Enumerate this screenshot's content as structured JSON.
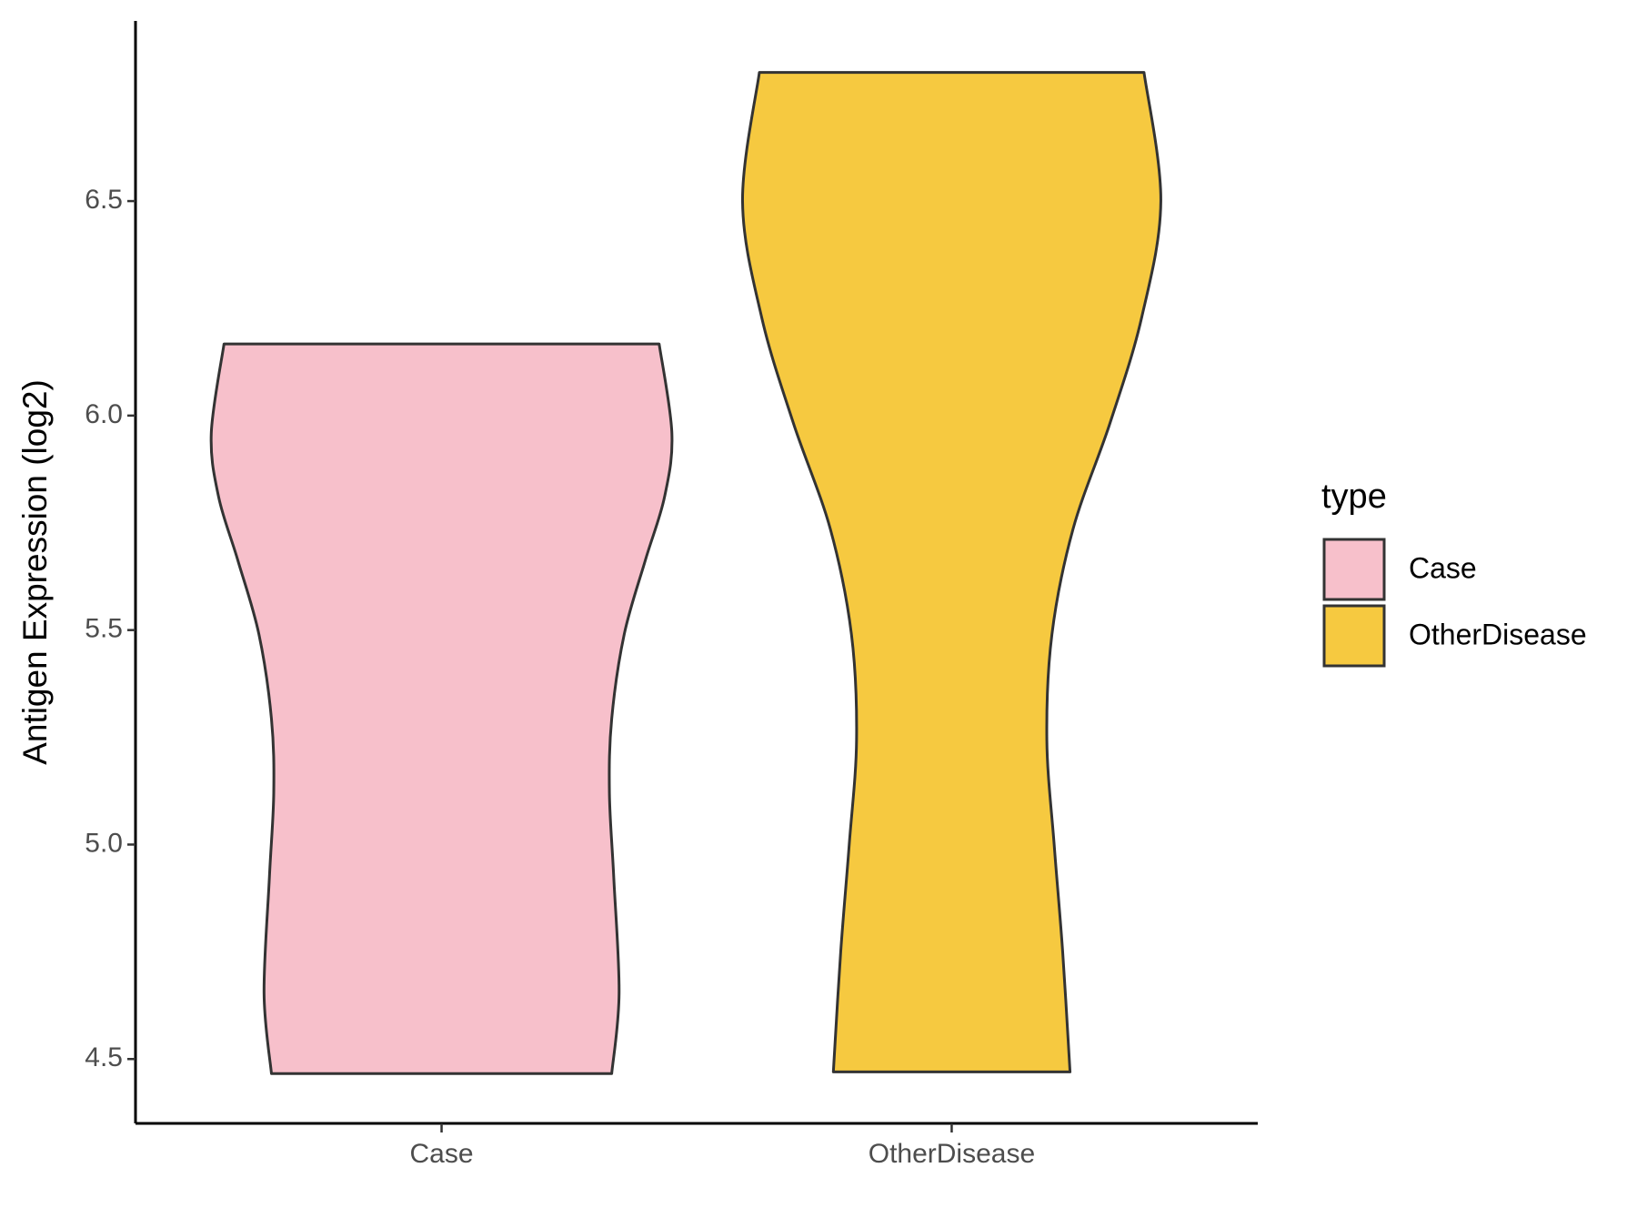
{
  "chart_data": {
    "type": "violin",
    "y_label": "Antigen Expression (log2)",
    "categories": [
      "Case",
      "OtherDisease"
    ],
    "legend_title": "type",
    "series": [
      {
        "name": "Case",
        "color": "#f7c0cb",
        "y": [
          6.167,
          5.958,
          5.81,
          5.663,
          5.49,
          5.293,
          5.121,
          4.924,
          4.653,
          4.466
        ],
        "widths": [
          0.853,
          0.903,
          0.874,
          0.799,
          0.716,
          0.667,
          0.658,
          0.675,
          0.696,
          0.667
        ]
      },
      {
        "name": "OtherDisease",
        "color": "#f6c940",
        "y": [
          6.8,
          6.5,
          6.229,
          5.983,
          5.736,
          5.49,
          5.244,
          4.998,
          4.751,
          4.47
        ],
        "widths": [
          0.754,
          0.82,
          0.745,
          0.621,
          0.476,
          0.393,
          0.373,
          0.402,
          0.435,
          0.464
        ]
      }
    ],
    "ylim": [
      4.35,
      6.92
    ],
    "yticks": [
      {
        "value": 4.5,
        "label": "4.5"
      },
      {
        "value": 5,
        "label": "5.0"
      },
      {
        "value": 5.5,
        "label": "5.5"
      },
      {
        "value": 6,
        "label": "6.0"
      },
      {
        "value": 6.5,
        "label": "6.5"
      }
    ]
  }
}
